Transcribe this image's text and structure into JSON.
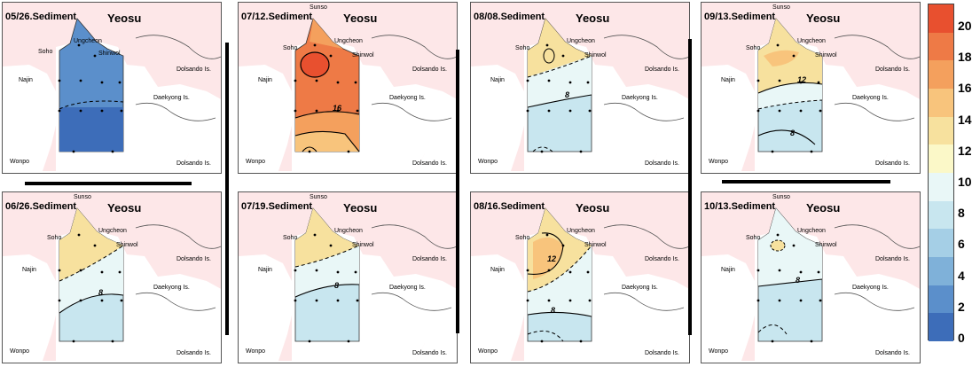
{
  "panels": [
    {
      "title": "05/26.Sediment",
      "city": "Yeosu"
    },
    {
      "title": "07/12.Sediment",
      "city": "Yeosu"
    },
    {
      "title": "08/08.Sediment",
      "city": "Yeosu"
    },
    {
      "title": "09/13.Sediment",
      "city": "Yeosu"
    },
    {
      "title": "06/26.Sediment",
      "city": "Yeosu"
    },
    {
      "title": "07/19.Sediment",
      "city": "Yeosu"
    },
    {
      "title": "08/16.Sediment",
      "city": "Yeosu"
    },
    {
      "title": "10/13.Sediment",
      "city": "Yeosu"
    }
  ],
  "places": {
    "sunso": "Sunso",
    "ungcheon": "Ungcheon",
    "soho": "Soho",
    "shinwol": "Shinwol",
    "najin": "Najin",
    "dolsando": "Dolsando Is.",
    "daekyong": "Daekyong Is.",
    "wonpo": "Wonpo"
  },
  "contour_labels": {
    "p1": "16",
    "p2": "8",
    "p3": "8",
    "p6": "12",
    "p7": "8",
    "p5": "8",
    "p8": "8"
  },
  "colorbar": {
    "ticks": [
      "20",
      "18",
      "16",
      "14",
      "12",
      "10",
      "8",
      "6",
      "4",
      "2",
      "0"
    ],
    "colors": [
      "#e8502f",
      "#ee7a46",
      "#f4a05d",
      "#f8c47c",
      "#f7e19e",
      "#fbf8c8",
      "#e9f7f7",
      "#c8e6ef",
      "#a5cfe6",
      "#7fb1d9",
      "#5b8fcb",
      "#3d6db9"
    ]
  }
}
